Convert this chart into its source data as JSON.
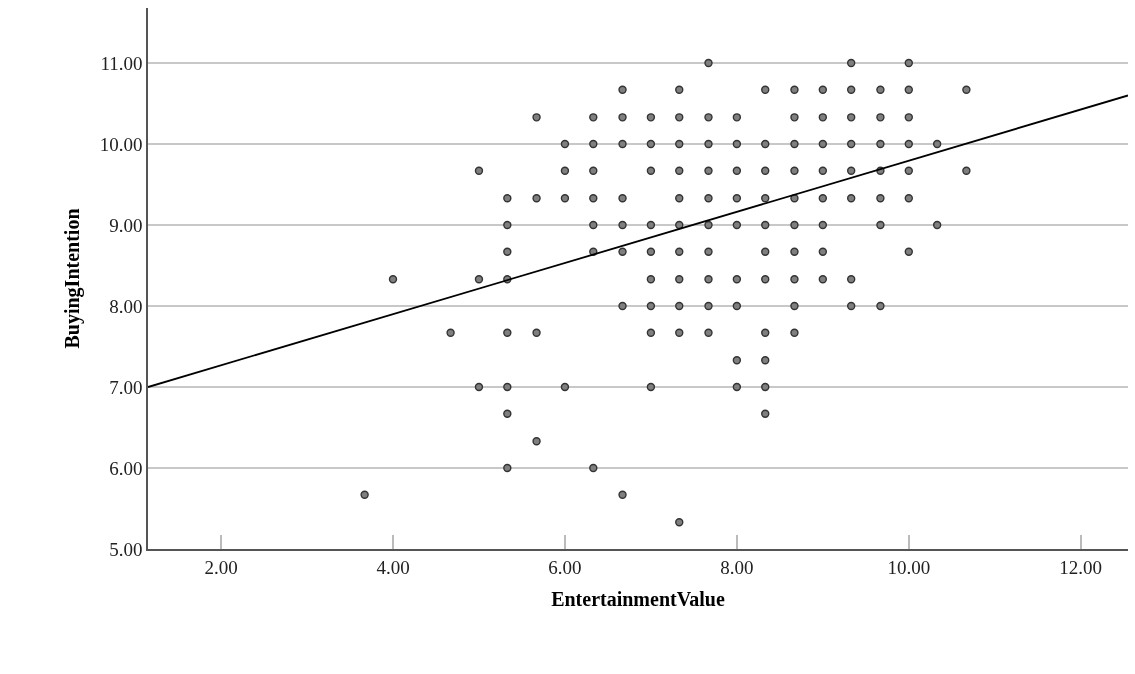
{
  "chart_data": {
    "type": "scatter",
    "xlabel": "EntertainmentValue",
    "ylabel": "BuyingIntention",
    "xlim": [
      1.15,
      12.55
    ],
    "ylim": [
      5,
      11.68
    ],
    "xticks": [
      {
        "value": 2,
        "label": "2.00"
      },
      {
        "value": 4,
        "label": "4.00"
      },
      {
        "value": 6,
        "label": "6.00"
      },
      {
        "value": 8,
        "label": "8.00"
      },
      {
        "value": 10,
        "label": "10.00"
      },
      {
        "value": 12,
        "label": "12.00"
      }
    ],
    "yticks": [
      {
        "value": 5,
        "label": "5.00"
      },
      {
        "value": 6,
        "label": "6.00"
      },
      {
        "value": 7,
        "label": "7.00"
      },
      {
        "value": 8,
        "label": "8.00"
      },
      {
        "value": 9,
        "label": "9.00"
      },
      {
        "value": 10,
        "label": "10.00"
      },
      {
        "value": 11,
        "label": "11.00"
      }
    ],
    "grid": "y",
    "marker": "circle",
    "series": [
      {
        "color": "#7f7f7f",
        "x": [
          3.67,
          4.0,
          4.67,
          5.0,
          5.0,
          5.0,
          5.33,
          5.33,
          5.33,
          5.33,
          5.33,
          5.33,
          5.33,
          5.33,
          5.67,
          5.67,
          5.67,
          5.67,
          6.0,
          6.0,
          6.0,
          6.0,
          6.33,
          6.33,
          6.33,
          6.33,
          6.33,
          6.33,
          6.33,
          6.67,
          6.67,
          6.67,
          6.67,
          6.67,
          6.67,
          6.67,
          6.67,
          7.0,
          7.0,
          7.0,
          7.0,
          7.0,
          7.0,
          7.0,
          7.0,
          7.0,
          7.33,
          7.33,
          7.33,
          7.33,
          7.33,
          7.33,
          7.33,
          7.33,
          7.33,
          7.33,
          7.33,
          7.67,
          7.67,
          7.67,
          7.67,
          7.67,
          7.67,
          7.67,
          7.67,
          7.67,
          7.67,
          8.0,
          8.0,
          8.0,
          8.0,
          8.0,
          8.0,
          8.0,
          8.0,
          8.0,
          8.33,
          8.33,
          8.33,
          8.33,
          8.33,
          8.33,
          8.33,
          8.33,
          8.33,
          8.33,
          8.33,
          8.67,
          8.67,
          8.67,
          8.67,
          8.67,
          8.67,
          8.67,
          8.67,
          8.67,
          8.67,
          9.0,
          9.0,
          9.0,
          9.0,
          9.0,
          9.0,
          9.0,
          9.0,
          9.33,
          9.33,
          9.33,
          9.33,
          9.33,
          9.33,
          9.33,
          9.33,
          9.67,
          9.67,
          9.67,
          9.67,
          9.67,
          9.67,
          9.67,
          10.0,
          10.0,
          10.0,
          10.0,
          10.0,
          10.0,
          10.0,
          10.33,
          10.33,
          10.67,
          10.67
        ],
        "values": [
          5.67,
          8.33,
          7.67,
          9.67,
          8.33,
          7.0,
          9.33,
          9.0,
          8.67,
          8.33,
          7.67,
          7.0,
          6.67,
          6.0,
          10.33,
          9.33,
          7.67,
          6.33,
          10.0,
          9.67,
          9.33,
          7.0,
          10.33,
          10.0,
          9.67,
          9.33,
          9.0,
          8.67,
          6.0,
          10.67,
          10.33,
          10.0,
          9.33,
          9.0,
          8.67,
          8.0,
          5.67,
          10.33,
          10.0,
          9.67,
          9.0,
          8.67,
          8.33,
          8.0,
          7.67,
          7.0,
          10.67,
          10.33,
          10.0,
          9.67,
          9.33,
          9.0,
          8.67,
          8.33,
          8.0,
          7.67,
          5.33,
          11.0,
          10.33,
          10.0,
          9.67,
          9.33,
          9.0,
          8.67,
          8.33,
          8.0,
          7.67,
          10.33,
          10.0,
          9.67,
          9.33,
          9.0,
          8.33,
          8.0,
          7.33,
          7.0,
          10.67,
          10.0,
          9.67,
          9.33,
          9.0,
          8.67,
          8.33,
          7.67,
          7.33,
          7.0,
          6.67,
          10.67,
          10.33,
          10.0,
          9.67,
          9.33,
          9.0,
          8.67,
          8.33,
          8.0,
          7.67,
          10.67,
          10.33,
          10.0,
          9.67,
          9.33,
          9.0,
          8.67,
          8.33,
          11.0,
          10.67,
          10.33,
          10.0,
          9.67,
          9.33,
          8.33,
          8.0,
          10.67,
          10.33,
          10.0,
          9.67,
          9.33,
          9.0,
          8.0,
          11.0,
          10.67,
          10.33,
          10.0,
          9.67,
          9.33,
          8.67,
          10.0,
          9.0,
          10.67,
          9.67
        ]
      },
      {
        "type": "line",
        "color": "#000000",
        "marker": "none",
        "line_style": "solid",
        "x": [
          1.15,
          12.55
        ],
        "values": [
          7.0,
          10.6
        ]
      }
    ]
  }
}
